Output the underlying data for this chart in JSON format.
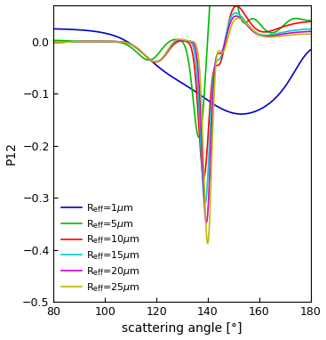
{
  "title": "",
  "xlabel": "scattering angle [°]",
  "ylabel": "P12",
  "xlim": [
    80,
    180
  ],
  "ylim": [
    -0.5,
    0.07
  ],
  "yticks": [
    0.0,
    -0.1,
    -0.2,
    -0.3,
    -0.4,
    -0.5
  ],
  "xticks": [
    80,
    100,
    120,
    140,
    160,
    180
  ],
  "legend_entries": [
    {
      "label": "R$_{\\mathrm{eff}}$=1$\\mu$m",
      "color": "#0000cc"
    },
    {
      "label": "R$_{\\mathrm{eff}}$=5$\\mu$m",
      "color": "#00bb00"
    },
    {
      "label": "R$_{\\mathrm{eff}}$=10$\\mu$m",
      "color": "#ff0000"
    },
    {
      "label": "R$_{\\mathrm{eff}}$=15$\\mu$m",
      "color": "#00cccc"
    },
    {
      "label": "R$_{\\mathrm{eff}}$=20$\\mu$m",
      "color": "#cc00cc"
    },
    {
      "label": "R$_{\\mathrm{eff}}$=25$\\mu$m",
      "color": "#bbbb00"
    }
  ],
  "background_color": "#ffffff",
  "figsize": [
    3.67,
    3.82
  ],
  "dpi": 100
}
